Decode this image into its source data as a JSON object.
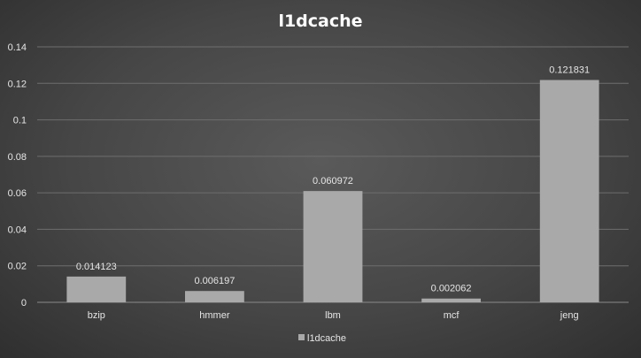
{
  "chart_data": {
    "type": "bar",
    "title": "l1dcache",
    "categories": [
      "bzip",
      "hmmer",
      "lbm",
      "mcf",
      "jeng"
    ],
    "series": [
      {
        "name": "l1dcache",
        "values": [
          0.014123,
          0.006197,
          0.060972,
          0.002062,
          0.121831
        ],
        "data_labels": [
          "0.014123",
          "0.006197",
          "0.060972",
          "0.002062",
          "0.121831"
        ]
      }
    ],
    "xlabel": "",
    "ylabel": "",
    "ylim": [
      0,
      0.14
    ],
    "yticks": [
      0,
      0.02,
      0.04,
      0.06,
      0.08,
      0.1,
      0.12,
      0.14
    ],
    "ytick_labels": [
      "0",
      "0.02",
      "0.04",
      "0.06",
      "0.08",
      "0.1",
      "0.12",
      "0.14"
    ],
    "grid": true,
    "legend_position": "bottom",
    "colors": {
      "bar": "#a9a9a9",
      "text": "#e6e6e6",
      "title": "#ffffff",
      "gridline": "#6e6e6e"
    }
  }
}
